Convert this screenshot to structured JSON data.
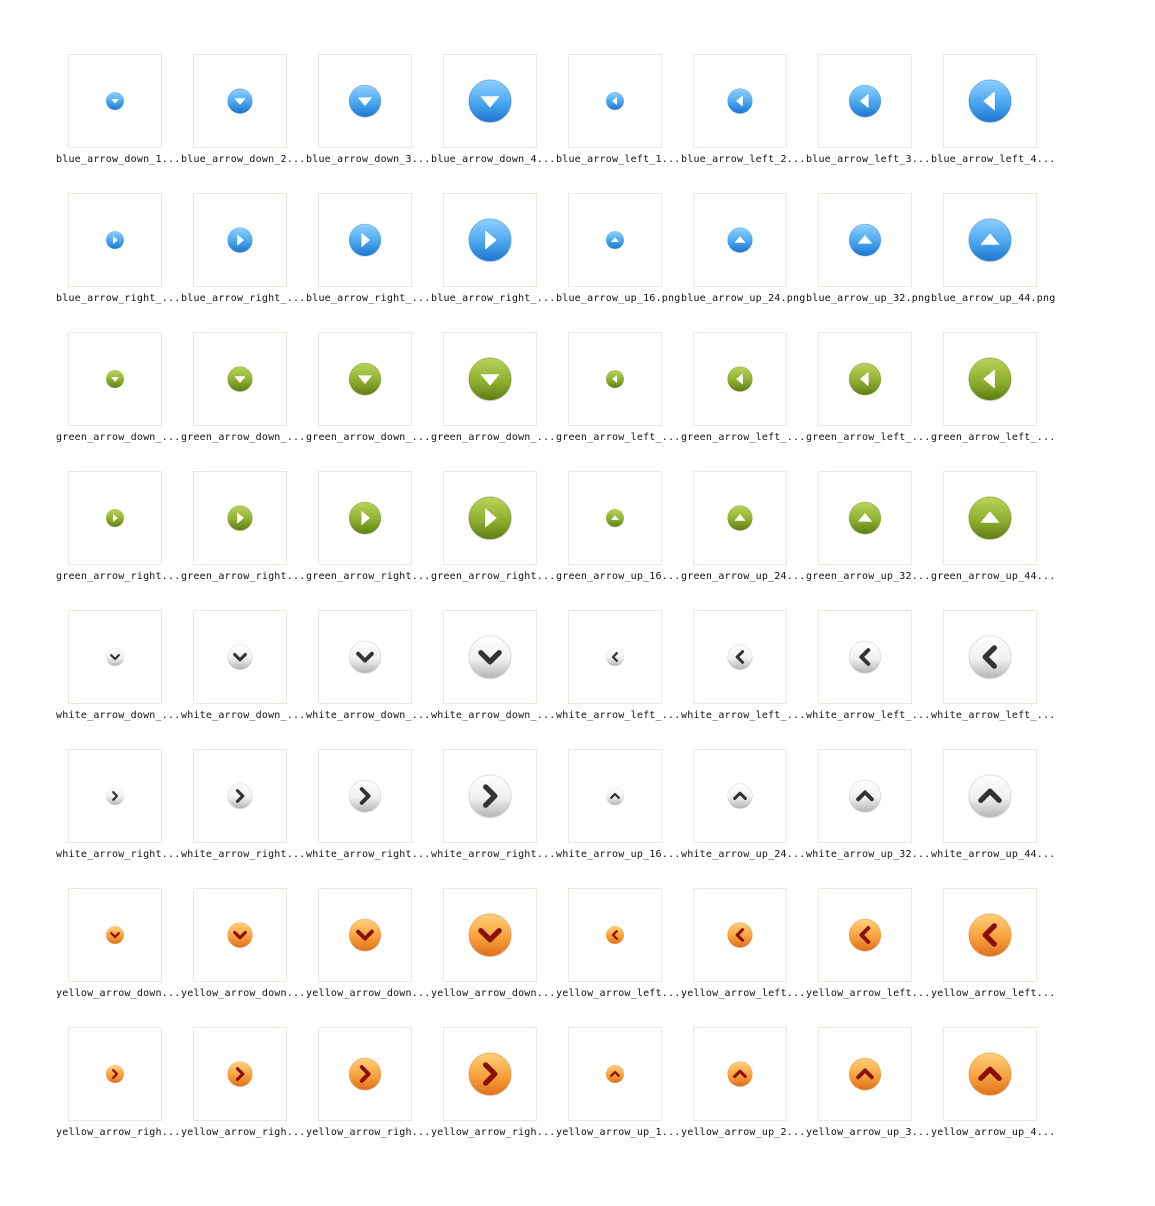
{
  "colors": {
    "blue": {
      "light": "#8fd0ff",
      "mid": "#4aa6ee",
      "dark": "#1e76cf",
      "glyph": "#ffffff"
    },
    "green": {
      "light": "#b9d35a",
      "mid": "#8fb030",
      "dark": "#5f7d14",
      "glyph": "#ffffff"
    },
    "white": {
      "light": "#ffffff",
      "mid": "#f0f0f0",
      "dark": "#b5b5b5",
      "glyph": "#333333"
    },
    "yellow": {
      "light": "#ffd07a",
      "mid": "#f7a23c",
      "dark": "#e0701c",
      "glyph": "#8a1010"
    }
  },
  "icons": [
    {
      "name": "blue_arrow_down_1...",
      "color": "blue",
      "dir": "down",
      "size": 16
    },
    {
      "name": "blue_arrow_down_2...",
      "color": "blue",
      "dir": "down",
      "size": 24
    },
    {
      "name": "blue_arrow_down_3...",
      "color": "blue",
      "dir": "down",
      "size": 32
    },
    {
      "name": "blue_arrow_down_4...",
      "color": "blue",
      "dir": "down",
      "size": 44
    },
    {
      "name": "blue_arrow_left_1...",
      "color": "blue",
      "dir": "left",
      "size": 16
    },
    {
      "name": "blue_arrow_left_2...",
      "color": "blue",
      "dir": "left",
      "size": 24
    },
    {
      "name": "blue_arrow_left_3...",
      "color": "blue",
      "dir": "left",
      "size": 32
    },
    {
      "name": "blue_arrow_left_4...",
      "color": "blue",
      "dir": "left",
      "size": 44
    },
    {
      "name": "blue_arrow_right_...",
      "color": "blue",
      "dir": "right",
      "size": 16
    },
    {
      "name": "blue_arrow_right_...",
      "color": "blue",
      "dir": "right",
      "size": 24
    },
    {
      "name": "blue_arrow_right_...",
      "color": "blue",
      "dir": "right",
      "size": 32
    },
    {
      "name": "blue_arrow_right_...",
      "color": "blue",
      "dir": "right",
      "size": 44
    },
    {
      "name": "blue_arrow_up_16.png",
      "color": "blue",
      "dir": "up",
      "size": 16
    },
    {
      "name": "blue_arrow_up_24.png",
      "color": "blue",
      "dir": "up",
      "size": 24
    },
    {
      "name": "blue_arrow_up_32.png",
      "color": "blue",
      "dir": "up",
      "size": 32
    },
    {
      "name": "blue_arrow_up_44.png",
      "color": "blue",
      "dir": "up",
      "size": 44
    },
    {
      "name": "green_arrow_down_...",
      "color": "green",
      "dir": "down",
      "size": 16
    },
    {
      "name": "green_arrow_down_...",
      "color": "green",
      "dir": "down",
      "size": 24
    },
    {
      "name": "green_arrow_down_...",
      "color": "green",
      "dir": "down",
      "size": 32
    },
    {
      "name": "green_arrow_down_...",
      "color": "green",
      "dir": "down",
      "size": 44
    },
    {
      "name": "green_arrow_left_...",
      "color": "green",
      "dir": "left",
      "size": 16
    },
    {
      "name": "green_arrow_left_...",
      "color": "green",
      "dir": "left",
      "size": 24
    },
    {
      "name": "green_arrow_left_...",
      "color": "green",
      "dir": "left",
      "size": 32
    },
    {
      "name": "green_arrow_left_...",
      "color": "green",
      "dir": "left",
      "size": 44
    },
    {
      "name": "green_arrow_right...",
      "color": "green",
      "dir": "right",
      "size": 16
    },
    {
      "name": "green_arrow_right...",
      "color": "green",
      "dir": "right",
      "size": 24
    },
    {
      "name": "green_arrow_right...",
      "color": "green",
      "dir": "right",
      "size": 32
    },
    {
      "name": "green_arrow_right...",
      "color": "green",
      "dir": "right",
      "size": 44
    },
    {
      "name": "green_arrow_up_16...",
      "color": "green",
      "dir": "up",
      "size": 16
    },
    {
      "name": "green_arrow_up_24...",
      "color": "green",
      "dir": "up",
      "size": 24
    },
    {
      "name": "green_arrow_up_32...",
      "color": "green",
      "dir": "up",
      "size": 32
    },
    {
      "name": "green_arrow_up_44...",
      "color": "green",
      "dir": "up",
      "size": 44
    },
    {
      "name": "white_arrow_down_...",
      "color": "white",
      "dir": "down",
      "size": 16
    },
    {
      "name": "white_arrow_down_...",
      "color": "white",
      "dir": "down",
      "size": 24
    },
    {
      "name": "white_arrow_down_...",
      "color": "white",
      "dir": "down",
      "size": 32
    },
    {
      "name": "white_arrow_down_...",
      "color": "white",
      "dir": "down",
      "size": 44
    },
    {
      "name": "white_arrow_left_...",
      "color": "white",
      "dir": "left",
      "size": 16
    },
    {
      "name": "white_arrow_left_...",
      "color": "white",
      "dir": "left",
      "size": 24
    },
    {
      "name": "white_arrow_left_...",
      "color": "white",
      "dir": "left",
      "size": 32
    },
    {
      "name": "white_arrow_left_...",
      "color": "white",
      "dir": "left",
      "size": 44
    },
    {
      "name": "white_arrow_right...",
      "color": "white",
      "dir": "right",
      "size": 16
    },
    {
      "name": "white_arrow_right...",
      "color": "white",
      "dir": "right",
      "size": 24
    },
    {
      "name": "white_arrow_right...",
      "color": "white",
      "dir": "right",
      "size": 32
    },
    {
      "name": "white_arrow_right...",
      "color": "white",
      "dir": "right",
      "size": 44
    },
    {
      "name": "white_arrow_up_16...",
      "color": "white",
      "dir": "up",
      "size": 16
    },
    {
      "name": "white_arrow_up_24...",
      "color": "white",
      "dir": "up",
      "size": 24
    },
    {
      "name": "white_arrow_up_32...",
      "color": "white",
      "dir": "up",
      "size": 32
    },
    {
      "name": "white_arrow_up_44...",
      "color": "white",
      "dir": "up",
      "size": 44
    },
    {
      "name": "yellow_arrow_down...",
      "color": "yellow",
      "dir": "down",
      "size": 16
    },
    {
      "name": "yellow_arrow_down...",
      "color": "yellow",
      "dir": "down",
      "size": 24
    },
    {
      "name": "yellow_arrow_down...",
      "color": "yellow",
      "dir": "down",
      "size": 32
    },
    {
      "name": "yellow_arrow_down...",
      "color": "yellow",
      "dir": "down",
      "size": 44
    },
    {
      "name": "yellow_arrow_left...",
      "color": "yellow",
      "dir": "left",
      "size": 16
    },
    {
      "name": "yellow_arrow_left...",
      "color": "yellow",
      "dir": "left",
      "size": 24
    },
    {
      "name": "yellow_arrow_left...",
      "color": "yellow",
      "dir": "left",
      "size": 32
    },
    {
      "name": "yellow_arrow_left...",
      "color": "yellow",
      "dir": "left",
      "size": 44
    },
    {
      "name": "yellow_arrow_righ...",
      "color": "yellow",
      "dir": "right",
      "size": 16
    },
    {
      "name": "yellow_arrow_righ...",
      "color": "yellow",
      "dir": "right",
      "size": 24
    },
    {
      "name": "yellow_arrow_righ...",
      "color": "yellow",
      "dir": "right",
      "size": 32
    },
    {
      "name": "yellow_arrow_righ...",
      "color": "yellow",
      "dir": "right",
      "size": 44
    },
    {
      "name": "yellow_arrow_up_1...",
      "color": "yellow",
      "dir": "up",
      "size": 16
    },
    {
      "name": "yellow_arrow_up_2...",
      "color": "yellow",
      "dir": "up",
      "size": 24
    },
    {
      "name": "yellow_arrow_up_3...",
      "color": "yellow",
      "dir": "up",
      "size": 32
    },
    {
      "name": "yellow_arrow_up_4...",
      "color": "yellow",
      "dir": "up",
      "size": 44
    }
  ]
}
